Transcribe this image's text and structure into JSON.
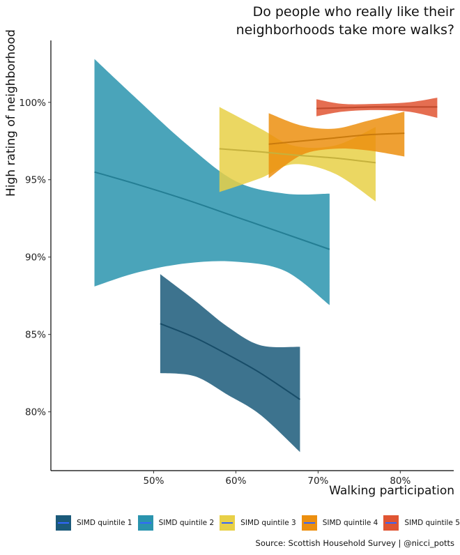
{
  "chart_data": {
    "type": "area",
    "title": "Do people who really like their neighborhoods take more walks?",
    "title_lines": [
      "Do people who really like their",
      "neighborhoods take more walks?"
    ],
    "xlabel": "Walking participation",
    "ylabel": "High rating of neighborhood",
    "source": "Source: Scottish Household Survey | @nicci_potts",
    "xlim": [
      37.5,
      86.5
    ],
    "ylim": [
      76.2,
      104.0
    ],
    "x_ticks": [
      50,
      60,
      70,
      80
    ],
    "x_tick_labels": [
      "50%",
      "60%",
      "70%",
      "80%"
    ],
    "y_ticks": [
      80,
      85,
      90,
      95,
      100
    ],
    "y_tick_labels": [
      "80%",
      "85%",
      "90%",
      "95%",
      "100%"
    ],
    "grid": false,
    "legend_position": "bottom",
    "series": [
      {
        "name": "SIMD quintile 1",
        "color": "#1b5a7a",
        "x": [
          50.8,
          55,
          59,
          63,
          67.8
        ],
        "fit": [
          85.7,
          84.8,
          83.7,
          82.5,
          80.8
        ],
        "lower": [
          82.5,
          82.3,
          81.1,
          79.8,
          77.4
        ],
        "upper": [
          88.9,
          87.2,
          85.5,
          84.3,
          84.2
        ]
      },
      {
        "name": "SIMD quintile 2",
        "color": "#2a94ae",
        "x": [
          42.8,
          48,
          54,
          60,
          66,
          71.4
        ],
        "fit": [
          95.5,
          94.7,
          93.7,
          92.6,
          91.5,
          90.5
        ],
        "lower": [
          88.1,
          89.0,
          89.6,
          89.7,
          89.1,
          86.9
        ],
        "upper": [
          102.8,
          100.2,
          97.3,
          94.9,
          94.1,
          94.1
        ]
      },
      {
        "name": "SIMD quintile 3",
        "color": "#e8d047",
        "x": [
          58,
          63,
          67,
          72,
          77
        ],
        "fit": [
          97.0,
          96.8,
          96.6,
          96.4,
          96.1
        ],
        "lower": [
          94.2,
          95.1,
          96.0,
          95.4,
          93.6
        ],
        "upper": [
          99.7,
          98.3,
          97.2,
          97.2,
          98.4
        ]
      },
      {
        "name": "SIMD quintile 4",
        "color": "#ec8f0f",
        "x": [
          64,
          68,
          72,
          76,
          80.5
        ],
        "fit": [
          97.3,
          97.5,
          97.7,
          97.9,
          98.0
        ],
        "lower": [
          95.1,
          96.6,
          97.0,
          96.9,
          96.5
        ],
        "upper": [
          99.3,
          98.5,
          98.3,
          98.8,
          99.4
        ]
      },
      {
        "name": "SIMD quintile 5",
        "color": "#e05533",
        "x": [
          69.8,
          73,
          77,
          81,
          84.5
        ],
        "fit": [
          99.6,
          99.65,
          99.7,
          99.7,
          99.7
        ],
        "lower": [
          99.1,
          99.4,
          99.5,
          99.4,
          99.0
        ],
        "upper": [
          100.2,
          99.9,
          99.9,
          100.0,
          100.3
        ]
      }
    ]
  }
}
